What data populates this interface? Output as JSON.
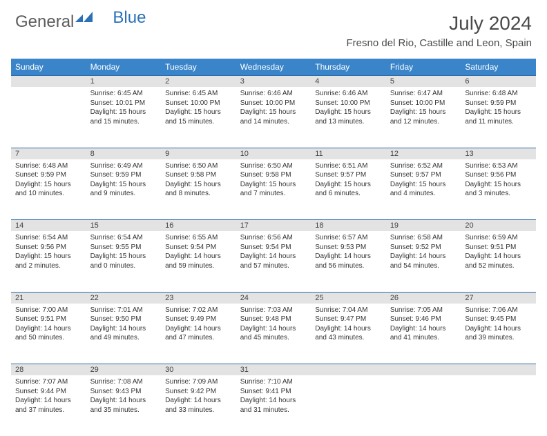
{
  "logo": {
    "general": "General",
    "blue": "Blue"
  },
  "header": {
    "title": "July 2024",
    "location": "Fresno del Rio, Castille and Leon, Spain"
  },
  "style": {
    "header_bg": "#3a85c9",
    "header_text": "#ffffff",
    "daterow_bg": "#e3e3e3",
    "daterow_border": "#2d6aa8",
    "body_text": "#333333",
    "title_color": "#4a4a4a",
    "logo_general_color": "#5c5c5c",
    "logo_blue_color": "#2b71b8",
    "title_fontsize": 28,
    "location_fontsize": 15,
    "dayhead_fontsize": 12,
    "cell_fontsize": 10
  },
  "dayNames": [
    "Sunday",
    "Monday",
    "Tuesday",
    "Wednesday",
    "Thursday",
    "Friday",
    "Saturday"
  ],
  "weeks": [
    [
      null,
      {
        "date": "1",
        "sunrise": "Sunrise: 6:45 AM",
        "sunset": "Sunset: 10:01 PM",
        "daylight": "Daylight: 15 hours and 15 minutes."
      },
      {
        "date": "2",
        "sunrise": "Sunrise: 6:45 AM",
        "sunset": "Sunset: 10:00 PM",
        "daylight": "Daylight: 15 hours and 15 minutes."
      },
      {
        "date": "3",
        "sunrise": "Sunrise: 6:46 AM",
        "sunset": "Sunset: 10:00 PM",
        "daylight": "Daylight: 15 hours and 14 minutes."
      },
      {
        "date": "4",
        "sunrise": "Sunrise: 6:46 AM",
        "sunset": "Sunset: 10:00 PM",
        "daylight": "Daylight: 15 hours and 13 minutes."
      },
      {
        "date": "5",
        "sunrise": "Sunrise: 6:47 AM",
        "sunset": "Sunset: 10:00 PM",
        "daylight": "Daylight: 15 hours and 12 minutes."
      },
      {
        "date": "6",
        "sunrise": "Sunrise: 6:48 AM",
        "sunset": "Sunset: 9:59 PM",
        "daylight": "Daylight: 15 hours and 11 minutes."
      }
    ],
    [
      {
        "date": "7",
        "sunrise": "Sunrise: 6:48 AM",
        "sunset": "Sunset: 9:59 PM",
        "daylight": "Daylight: 15 hours and 10 minutes."
      },
      {
        "date": "8",
        "sunrise": "Sunrise: 6:49 AM",
        "sunset": "Sunset: 9:59 PM",
        "daylight": "Daylight: 15 hours and 9 minutes."
      },
      {
        "date": "9",
        "sunrise": "Sunrise: 6:50 AM",
        "sunset": "Sunset: 9:58 PM",
        "daylight": "Daylight: 15 hours and 8 minutes."
      },
      {
        "date": "10",
        "sunrise": "Sunrise: 6:50 AM",
        "sunset": "Sunset: 9:58 PM",
        "daylight": "Daylight: 15 hours and 7 minutes."
      },
      {
        "date": "11",
        "sunrise": "Sunrise: 6:51 AM",
        "sunset": "Sunset: 9:57 PM",
        "daylight": "Daylight: 15 hours and 6 minutes."
      },
      {
        "date": "12",
        "sunrise": "Sunrise: 6:52 AM",
        "sunset": "Sunset: 9:57 PM",
        "daylight": "Daylight: 15 hours and 4 minutes."
      },
      {
        "date": "13",
        "sunrise": "Sunrise: 6:53 AM",
        "sunset": "Sunset: 9:56 PM",
        "daylight": "Daylight: 15 hours and 3 minutes."
      }
    ],
    [
      {
        "date": "14",
        "sunrise": "Sunrise: 6:54 AM",
        "sunset": "Sunset: 9:56 PM",
        "daylight": "Daylight: 15 hours and 2 minutes."
      },
      {
        "date": "15",
        "sunrise": "Sunrise: 6:54 AM",
        "sunset": "Sunset: 9:55 PM",
        "daylight": "Daylight: 15 hours and 0 minutes."
      },
      {
        "date": "16",
        "sunrise": "Sunrise: 6:55 AM",
        "sunset": "Sunset: 9:54 PM",
        "daylight": "Daylight: 14 hours and 59 minutes."
      },
      {
        "date": "17",
        "sunrise": "Sunrise: 6:56 AM",
        "sunset": "Sunset: 9:54 PM",
        "daylight": "Daylight: 14 hours and 57 minutes."
      },
      {
        "date": "18",
        "sunrise": "Sunrise: 6:57 AM",
        "sunset": "Sunset: 9:53 PM",
        "daylight": "Daylight: 14 hours and 56 minutes."
      },
      {
        "date": "19",
        "sunrise": "Sunrise: 6:58 AM",
        "sunset": "Sunset: 9:52 PM",
        "daylight": "Daylight: 14 hours and 54 minutes."
      },
      {
        "date": "20",
        "sunrise": "Sunrise: 6:59 AM",
        "sunset": "Sunset: 9:51 PM",
        "daylight": "Daylight: 14 hours and 52 minutes."
      }
    ],
    [
      {
        "date": "21",
        "sunrise": "Sunrise: 7:00 AM",
        "sunset": "Sunset: 9:51 PM",
        "daylight": "Daylight: 14 hours and 50 minutes."
      },
      {
        "date": "22",
        "sunrise": "Sunrise: 7:01 AM",
        "sunset": "Sunset: 9:50 PM",
        "daylight": "Daylight: 14 hours and 49 minutes."
      },
      {
        "date": "23",
        "sunrise": "Sunrise: 7:02 AM",
        "sunset": "Sunset: 9:49 PM",
        "daylight": "Daylight: 14 hours and 47 minutes."
      },
      {
        "date": "24",
        "sunrise": "Sunrise: 7:03 AM",
        "sunset": "Sunset: 9:48 PM",
        "daylight": "Daylight: 14 hours and 45 minutes."
      },
      {
        "date": "25",
        "sunrise": "Sunrise: 7:04 AM",
        "sunset": "Sunset: 9:47 PM",
        "daylight": "Daylight: 14 hours and 43 minutes."
      },
      {
        "date": "26",
        "sunrise": "Sunrise: 7:05 AM",
        "sunset": "Sunset: 9:46 PM",
        "daylight": "Daylight: 14 hours and 41 minutes."
      },
      {
        "date": "27",
        "sunrise": "Sunrise: 7:06 AM",
        "sunset": "Sunset: 9:45 PM",
        "daylight": "Daylight: 14 hours and 39 minutes."
      }
    ],
    [
      {
        "date": "28",
        "sunrise": "Sunrise: 7:07 AM",
        "sunset": "Sunset: 9:44 PM",
        "daylight": "Daylight: 14 hours and 37 minutes."
      },
      {
        "date": "29",
        "sunrise": "Sunrise: 7:08 AM",
        "sunset": "Sunset: 9:43 PM",
        "daylight": "Daylight: 14 hours and 35 minutes."
      },
      {
        "date": "30",
        "sunrise": "Sunrise: 7:09 AM",
        "sunset": "Sunset: 9:42 PM",
        "daylight": "Daylight: 14 hours and 33 minutes."
      },
      {
        "date": "31",
        "sunrise": "Sunrise: 7:10 AM",
        "sunset": "Sunset: 9:41 PM",
        "daylight": "Daylight: 14 hours and 31 minutes."
      },
      null,
      null,
      null
    ]
  ]
}
